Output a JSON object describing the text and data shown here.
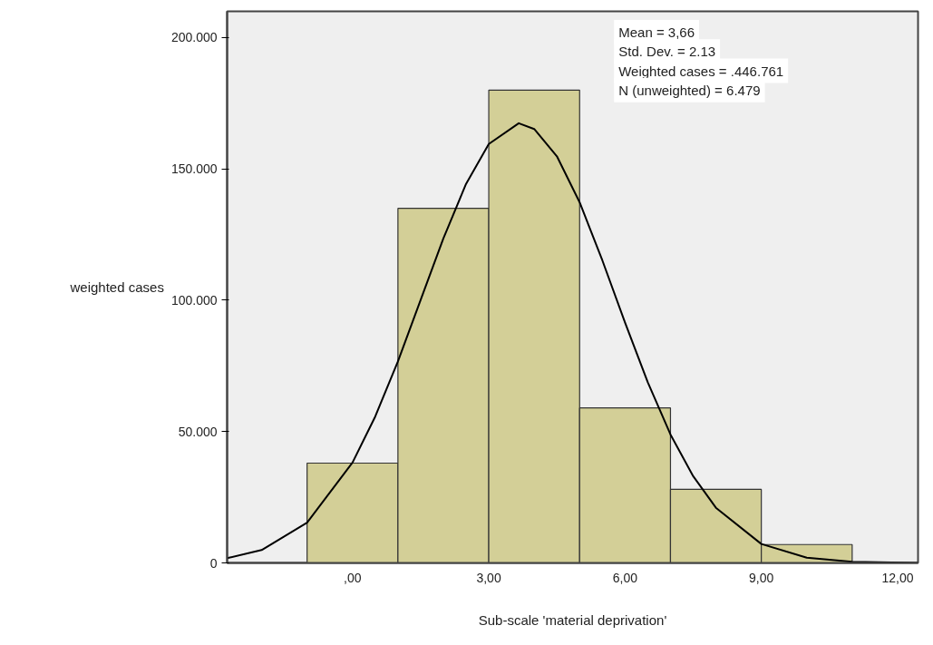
{
  "chart_data": {
    "type": "histogram",
    "xlabel": "Sub-scale 'material deprivation'",
    "ylabel": "weighted cases",
    "bins": [
      -1,
      1,
      3,
      5,
      7,
      9,
      11
    ],
    "values": [
      38000,
      135000,
      180000,
      59000,
      28000,
      7000
    ],
    "color": "#d3cf97",
    "series": [
      {
        "type": "line",
        "color": "#000000",
        "x": [
          -2.76,
          -2,
          -1,
          0,
          0.5,
          1,
          1.5,
          2,
          2.5,
          3,
          3.66,
          4,
          4.5,
          5,
          5.5,
          6,
          6.5,
          7,
          7.5,
          8,
          9,
          10,
          11,
          12.45
        ],
        "values": [
          1800,
          4900,
          15300,
          38200,
          55700,
          76700,
          100100,
          123500,
          144300,
          159500,
          167400,
          165200,
          154800,
          137300,
          115200,
          91500,
          68800,
          48900,
          33000,
          21000,
          7200,
          2000,
          400,
          0
        ]
      }
    ],
    "xlim": [
      -2.76,
      12.45
    ],
    "ylim": [
      0,
      210000
    ],
    "xticks": [
      {
        "value": 0,
        "label": ",00"
      },
      {
        "value": 3,
        "label": "3,00"
      },
      {
        "value": 6,
        "label": "6,00"
      },
      {
        "value": 9,
        "label": "9,00"
      },
      {
        "value": 12,
        "label": "12,00"
      }
    ],
    "yticks": [
      {
        "value": 0,
        "label": "0"
      },
      {
        "value": 50000,
        "label": "50.000"
      },
      {
        "value": 100000,
        "label": "100.000"
      },
      {
        "value": 150000,
        "label": "150.000"
      },
      {
        "value": 200000,
        "label": "200.000"
      }
    ],
    "annotations": [
      "Mean = 3,66",
      "Std. Dev. = 2.13",
      "Weighted cases = .446.761",
      "N (unweighted) = 6.479"
    ]
  }
}
